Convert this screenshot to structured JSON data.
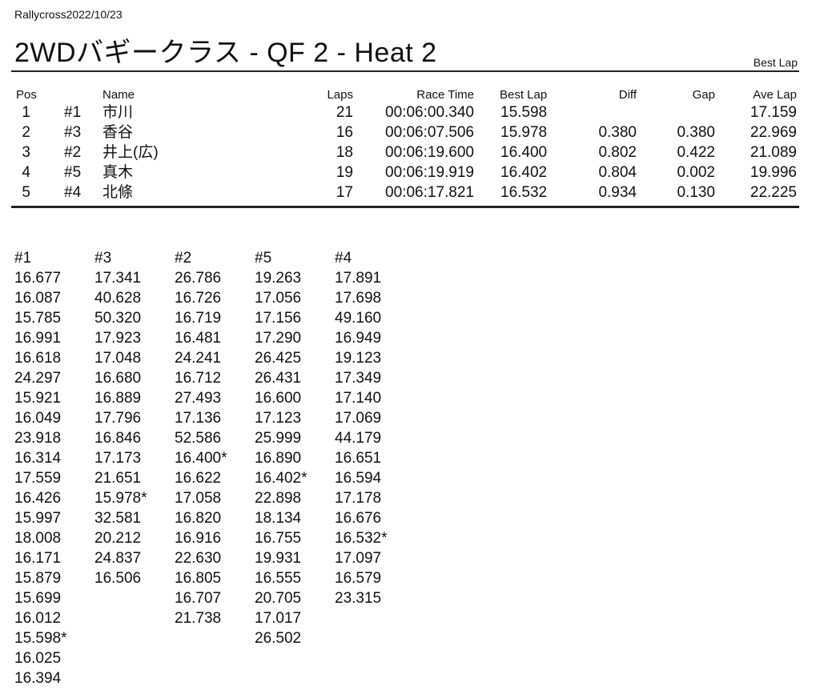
{
  "event": "Rallycross2022/10/23",
  "title": "2WDバギークラス  -  QF 2  -  Heat 2",
  "subtitle": "Best Lap",
  "results": {
    "headers": {
      "pos": "Pos",
      "name": "Name",
      "laps": "Laps",
      "race_time": "Race Time",
      "best_lap": "Best Lap",
      "diff": "Diff",
      "gap": "Gap",
      "ave_lap": "Ave Lap"
    },
    "rows": [
      {
        "pos": "1",
        "num": "#1",
        "name": "市川",
        "laps": "21",
        "race_time": "00:06:00.340",
        "best_lap": "15.598",
        "diff": "",
        "gap": "",
        "ave_lap": "17.159"
      },
      {
        "pos": "2",
        "num": "#3",
        "name": "香谷",
        "laps": "16",
        "race_time": "00:06:07.506",
        "best_lap": "15.978",
        "diff": "0.380",
        "gap": "0.380",
        "ave_lap": "22.969"
      },
      {
        "pos": "3",
        "num": "#2",
        "name": "井上(広)",
        "laps": "18",
        "race_time": "00:06:19.600",
        "best_lap": "16.400",
        "diff": "0.802",
        "gap": "0.422",
        "ave_lap": "21.089"
      },
      {
        "pos": "4",
        "num": "#5",
        "name": "真木",
        "laps": "19",
        "race_time": "00:06:19.919",
        "best_lap": "16.402",
        "diff": "0.804",
        "gap": "0.002",
        "ave_lap": "19.996"
      },
      {
        "pos": "5",
        "num": "#4",
        "name": "北條",
        "laps": "17",
        "race_time": "00:06:17.821",
        "best_lap": "16.532",
        "diff": "0.934",
        "gap": "0.130",
        "ave_lap": "22.225"
      }
    ]
  },
  "laps": [
    {
      "car": "#1",
      "times": [
        "16.677",
        "16.087",
        "15.785",
        "16.991",
        "16.618",
        "24.297",
        "15.921",
        "16.049",
        "23.918",
        "16.314",
        "17.559",
        "16.426",
        "15.997",
        "18.008",
        "16.171",
        "15.879",
        "15.699",
        "16.012",
        "15.598*",
        "16.025",
        "16.394"
      ]
    },
    {
      "car": "#3",
      "times": [
        "17.341",
        "40.628",
        "50.320",
        "17.923",
        "17.048",
        "16.680",
        "16.889",
        "17.796",
        "16.846",
        "17.173",
        "21.651",
        "15.978*",
        "32.581",
        "20.212",
        "24.837",
        "16.506"
      ]
    },
    {
      "car": "#2",
      "times": [
        "26.786",
        "16.726",
        "16.719",
        "16.481",
        "24.241",
        "16.712",
        "27.493",
        "17.136",
        "52.586",
        "16.400*",
        "16.622",
        "17.058",
        "16.820",
        "16.916",
        "22.630",
        "16.805",
        "16.707",
        "21.738"
      ]
    },
    {
      "car": "#5",
      "times": [
        "19.263",
        "17.056",
        "17.156",
        "17.290",
        "26.425",
        "26.431",
        "16.600",
        "17.123",
        "25.999",
        "16.890",
        "16.402*",
        "22.898",
        "18.134",
        "16.755",
        "19.931",
        "16.555",
        "20.705",
        "17.017",
        "26.502"
      ]
    },
    {
      "car": "#4",
      "times": [
        "17.891",
        "17.698",
        "49.160",
        "16.949",
        "19.123",
        "17.349",
        "17.140",
        "17.069",
        "44.179",
        "16.651",
        "16.594",
        "17.178",
        "16.676",
        "16.532*",
        "17.097",
        "16.579",
        "23.315"
      ]
    }
  ]
}
